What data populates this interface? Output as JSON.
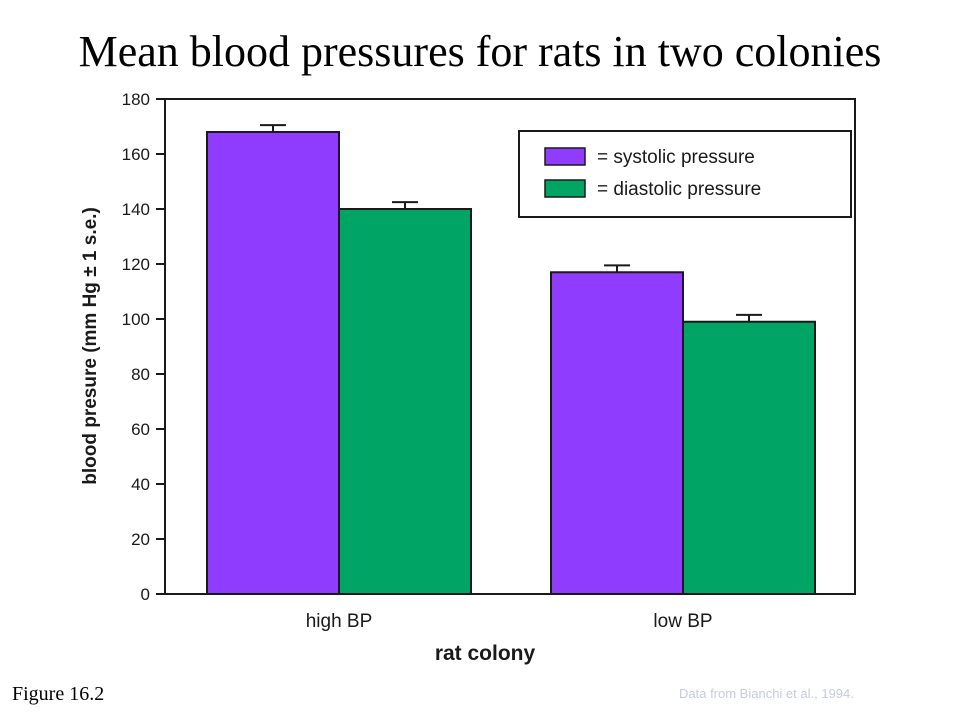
{
  "title": "Mean blood pressures for rats in two colonies",
  "figure_label": "Figure 16.2",
  "source": "Data from Bianchi et al., 1994.",
  "colors": {
    "systolic": "#8f3cff",
    "diastolic": "#00a566",
    "axis": "#1a1a1a",
    "source_text": "#c7cbe0"
  },
  "chart_data": {
    "type": "bar",
    "categories": [
      "high BP",
      "low BP"
    ],
    "series": [
      {
        "name": "= systolic pressure",
        "values": [
          168,
          117
        ],
        "errors": [
          2.5,
          2.5
        ],
        "color": "#8f3cff"
      },
      {
        "name": "= diastolic pressure",
        "values": [
          140,
          99
        ],
        "errors": [
          2.5,
          2.5
        ],
        "color": "#00a566"
      }
    ],
    "xlabel": "rat colony",
    "ylabel": "blood presure (mm Hg ± 1 s.e.)",
    "ylim": [
      0,
      180
    ],
    "yticks": [
      0,
      20,
      40,
      60,
      80,
      100,
      120,
      140,
      160,
      180
    ],
    "grid": false,
    "legend": "top-right"
  }
}
